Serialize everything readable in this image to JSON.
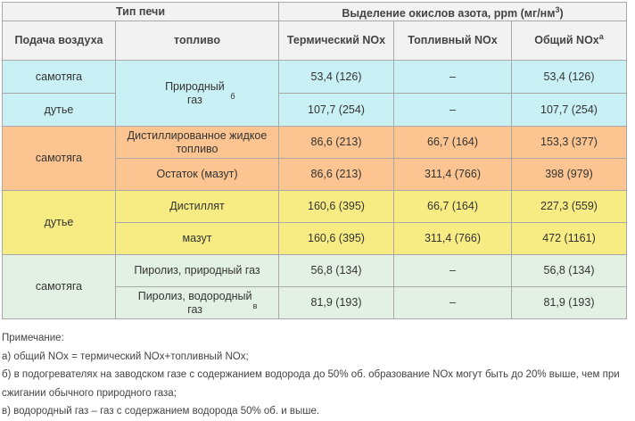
{
  "header": {
    "furnace_type": "Тип печи",
    "emission": "Выделение окислов азота, ppm (мг/нм",
    "emission_sup": "3",
    "emission_end": ")",
    "air_supply": "Подача воздуха",
    "fuel": "топливо",
    "thermal": "Термический NOx",
    "fuel_nox": "Топливный NOx",
    "total": "Общий NOx",
    "total_sup": "а"
  },
  "rows": {
    "natural_draft_1": "самотяга",
    "blast_1": "дутье",
    "natural_gas": "Природный газ",
    "natural_gas_sup": "б",
    "r1": {
      "thermal": "53,4 (126)",
      "fuel": "–",
      "total": "53,4 (126)"
    },
    "r2": {
      "thermal": "107,7 (254)",
      "fuel": "–",
      "total": "107,7 (254)"
    },
    "natural_draft_2": "самотяга",
    "distilled_liquid": "Дистиллированное жидкое топливо",
    "r3": {
      "thermal": "86,6 (213)",
      "fuel": "66,7 (164)",
      "total": "153,3 (377)"
    },
    "residue": "Остаток (мазут)",
    "r4": {
      "thermal": "86,6 (213)",
      "fuel": "311,4 (766)",
      "total": "398 (979)"
    },
    "blast_2": "дутье",
    "distillate": "Дистиллят",
    "r5": {
      "thermal": "160,6 (395)",
      "fuel": "66,7 (164)",
      "total": "227,3 (559)"
    },
    "mazut": "мазут",
    "r6": {
      "thermal": "160,6 (395)",
      "fuel": "311,4 (766)",
      "total": "472 (1161)"
    },
    "natural_draft_3": "самотяга",
    "pyrolysis_natural": "Пиролиз, природный газ",
    "r7": {
      "thermal": "56,8 (134)",
      "fuel": "–",
      "total": "56,8 (134)"
    },
    "pyrolysis_hydrogen": "Пиролиз, водородный газ",
    "pyrolysis_hydrogen_sup": "в",
    "r8": {
      "thermal": "81,9 (193)",
      "fuel": "–",
      "total": "81,9 (193)"
    }
  },
  "notes": {
    "title": "Примечание:",
    "a": "а) общий NOx = термический NOx+топливный NOx;",
    "b": "б) в подогревателях на заводском газе с содержанием водорода до 50% об. образование NOx могут быть до 20% выше, чем при сжигании обычного природного газа;",
    "c": "в) водородный газ – газ с содержанием водорода 50% об. и выше."
  },
  "colors": {
    "header_bg": "#f2f2f2",
    "cyan": "#c8f0f5",
    "orange": "#fbc490",
    "yellow": "#f7ec83",
    "green": "#e3f1e5",
    "border": "#a9a9a9"
  }
}
